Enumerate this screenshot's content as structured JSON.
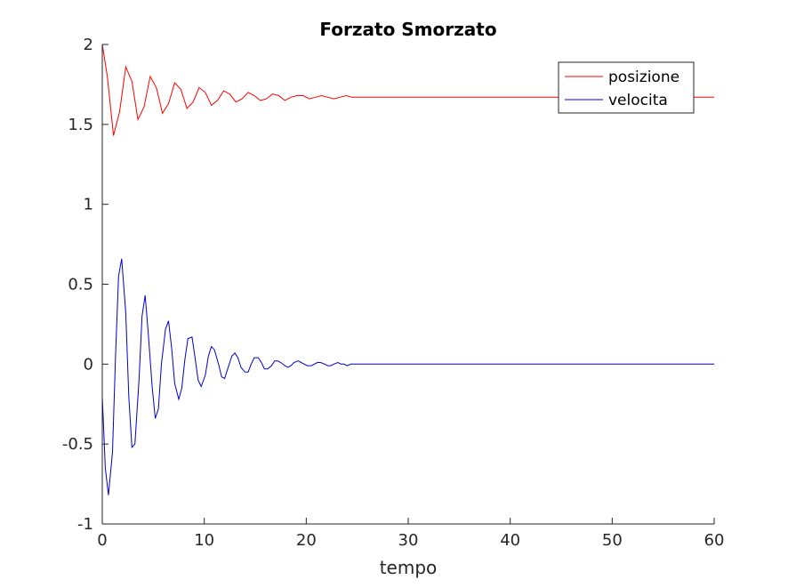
{
  "chart_data": {
    "type": "line",
    "title": "Forzato Smorzato",
    "xlabel": "tempo",
    "ylabel": "",
    "xlim": [
      0,
      60
    ],
    "ylim": [
      -1,
      2
    ],
    "xticks": [
      0,
      10,
      20,
      30,
      40,
      50,
      60
    ],
    "yticks": [
      -1,
      -0.5,
      0,
      0.5,
      1,
      1.5,
      2
    ],
    "xtick_labels": [
      "0",
      "10",
      "20",
      "30",
      "40",
      "50",
      "60"
    ],
    "ytick_labels": [
      "-1",
      "-0.5",
      "0",
      "0.5",
      "1",
      "1.5",
      "2"
    ],
    "grid": false,
    "legend_position": "top-right",
    "series": [
      {
        "name": "posizione",
        "color": "#ff0000",
        "x": [
          0,
          0.5,
          1.1,
          1.7,
          2.3,
          2.9,
          3.5,
          4.1,
          4.7,
          5.3,
          5.9,
          6.5,
          7.1,
          7.7,
          8.3,
          8.9,
          9.5,
          10.1,
          10.7,
          11.3,
          11.9,
          12.5,
          13.1,
          13.7,
          14.3,
          14.9,
          15.5,
          16.1,
          16.7,
          17.3,
          17.9,
          18.5,
          19.1,
          19.7,
          20.3,
          20.9,
          21.5,
          22.1,
          22.7,
          23.3,
          23.9,
          24.5,
          25.1,
          25.7,
          26.3,
          26.9,
          27.5,
          28.1,
          28.7,
          29.3,
          29.9,
          30.5,
          31.1,
          31.7,
          32.3,
          32.9,
          33.5,
          34.1,
          34.7,
          35.3,
          35.9,
          36.5,
          37.1,
          37.7,
          38.3,
          38.9,
          39.5,
          40.1,
          40.7,
          41.3,
          41.9,
          42.5,
          43.1,
          43.7,
          44.3,
          44.9,
          45.5,
          46.1,
          46.7,
          47.3,
          47.9,
          48.5,
          49.1,
          49.7,
          50.3,
          50.9,
          51.5,
          52.1,
          52.7,
          53.3,
          53.9,
          54.5,
          55.1,
          55.7,
          56.3,
          56.9,
          57.5,
          58.1,
          58.7,
          59.3,
          59.9,
          60
        ],
        "y": [
          2.0,
          1.8,
          1.43,
          1.58,
          1.86,
          1.77,
          1.53,
          1.61,
          1.8,
          1.73,
          1.57,
          1.63,
          1.76,
          1.72,
          1.6,
          1.64,
          1.73,
          1.7,
          1.62,
          1.65,
          1.71,
          1.69,
          1.64,
          1.66,
          1.7,
          1.68,
          1.65,
          1.66,
          1.69,
          1.68,
          1.65,
          1.67,
          1.68,
          1.68,
          1.66,
          1.67,
          1.68,
          1.67,
          1.66,
          1.67,
          1.68,
          1.67,
          1.67,
          1.67,
          1.67,
          1.67,
          1.67,
          1.67,
          1.67,
          1.67,
          1.67,
          1.67,
          1.67,
          1.67,
          1.67,
          1.67,
          1.67,
          1.67,
          1.67,
          1.67,
          1.67,
          1.67,
          1.67,
          1.67,
          1.67,
          1.67,
          1.67,
          1.67,
          1.67,
          1.67,
          1.67,
          1.67,
          1.67,
          1.67,
          1.67,
          1.67,
          1.67,
          1.67,
          1.67,
          1.67,
          1.67,
          1.67,
          1.67,
          1.67,
          1.67,
          1.67,
          1.67,
          1.67,
          1.67,
          1.67,
          1.67,
          1.67,
          1.67,
          1.67,
          1.67,
          1.67,
          1.67,
          1.67,
          1.67,
          1.67,
          1.67,
          1.67
        ]
      },
      {
        "name": "velocita",
        "color": "#0000cc",
        "x": [
          0,
          0.3,
          0.6,
          1.0,
          1.3,
          1.6,
          1.9,
          2.3,
          2.6,
          2.9,
          3.2,
          3.6,
          3.9,
          4.2,
          4.5,
          4.9,
          5.2,
          5.5,
          5.8,
          6.2,
          6.5,
          6.8,
          7.1,
          7.5,
          7.8,
          8.1,
          8.4,
          8.8,
          9.1,
          9.4,
          9.7,
          10.1,
          10.4,
          10.7,
          11.0,
          11.4,
          11.7,
          12.0,
          12.3,
          12.7,
          13.0,
          13.3,
          13.6,
          14.0,
          14.3,
          14.6,
          14.9,
          15.3,
          15.6,
          15.9,
          16.2,
          16.6,
          16.9,
          17.2,
          17.5,
          17.9,
          18.2,
          18.5,
          18.8,
          19.2,
          19.5,
          19.8,
          20.1,
          20.5,
          20.8,
          21.1,
          21.4,
          21.8,
          22.1,
          22.4,
          22.7,
          23.1,
          23.4,
          23.7,
          24.0,
          24.4,
          24.7,
          25.0,
          25.3,
          25.7,
          26.0,
          26.3,
          26.6,
          27.0,
          27.3,
          27.6,
          27.9,
          28.3,
          28.6,
          28.9,
          29.2,
          29.6,
          29.9,
          30.2,
          30.5,
          30.9,
          31.2,
          31.5,
          31.8,
          32.2,
          35,
          40,
          45,
          50,
          55,
          60
        ],
        "y": [
          -0.2,
          -0.65,
          -0.82,
          -0.55,
          0.05,
          0.55,
          0.66,
          0.32,
          -0.2,
          -0.52,
          -0.5,
          -0.1,
          0.3,
          0.43,
          0.2,
          -0.15,
          -0.34,
          -0.28,
          0.0,
          0.22,
          0.27,
          0.1,
          -0.12,
          -0.22,
          -0.15,
          0.03,
          0.16,
          0.17,
          0.04,
          -0.1,
          -0.14,
          -0.07,
          0.05,
          0.11,
          0.09,
          0.0,
          -0.08,
          -0.09,
          -0.03,
          0.05,
          0.07,
          0.04,
          -0.02,
          -0.05,
          -0.05,
          0.0,
          0.04,
          0.04,
          0.01,
          -0.03,
          -0.03,
          -0.01,
          0.02,
          0.02,
          0.01,
          -0.01,
          -0.02,
          -0.01,
          0.01,
          0.02,
          0.01,
          0.0,
          -0.01,
          -0.01,
          0.0,
          0.01,
          0.01,
          0.0,
          -0.01,
          -0.01,
          0.0,
          0.01,
          0.0,
          0.0,
          -0.01,
          0.0,
          0.0,
          0.0,
          0.0,
          0.0,
          0.0,
          0.0,
          0.0,
          0.0,
          0.0,
          0.0,
          0.0,
          0.0,
          0.0,
          0.0,
          0.0,
          0.0,
          0.0,
          0.0,
          0.0,
          0.0,
          0.0,
          0.0,
          0.0,
          0.0,
          0.0,
          0.0,
          0.0,
          0.0,
          0.0,
          0.0
        ]
      }
    ]
  }
}
